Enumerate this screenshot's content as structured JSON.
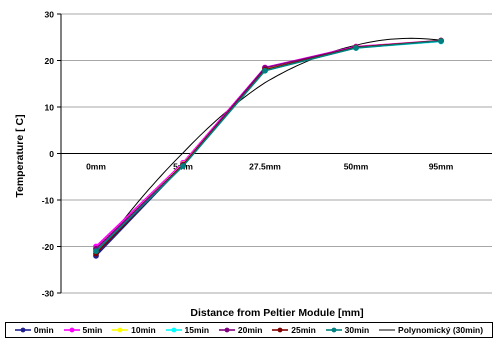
{
  "chart_data": {
    "type": "line",
    "xlabel": "Distance from Peltier Module [mm]",
    "ylabel": "Temperature [ C]",
    "categories": [
      "0mm",
      "5mm",
      "27.5mm",
      "50mm",
      "95mm"
    ],
    "ylim": [
      -30,
      30
    ],
    "yticks": [
      -30,
      -20,
      -10,
      0,
      10,
      20,
      30
    ],
    "grid": true,
    "legend_position": "bottom",
    "series": [
      {
        "name": "0min",
        "color": "#1f1f8f",
        "marker": "diamond",
        "values": [
          -22,
          -2.5,
          18,
          22.8,
          24.2
        ]
      },
      {
        "name": "5min",
        "color": "#ff00ff",
        "marker": "square",
        "values": [
          -20,
          -2,
          18.5,
          23,
          24.3
        ]
      },
      {
        "name": "10min",
        "color": "#ffff00",
        "marker": "triangle",
        "values": [
          -20.5,
          -2.3,
          18.2,
          22.9,
          24.2
        ]
      },
      {
        "name": "15min",
        "color": "#00ffff",
        "marker": "x",
        "values": [
          -21,
          -2.6,
          17.9,
          22.7,
          24.1
        ]
      },
      {
        "name": "20min",
        "color": "#800080",
        "marker": "star",
        "values": [
          -20.5,
          -2.4,
          18.4,
          22.9,
          24.2
        ]
      },
      {
        "name": "25min",
        "color": "#800000",
        "marker": "circle",
        "values": [
          -21.5,
          -2.5,
          18,
          22.8,
          24.3
        ]
      },
      {
        "name": "30min",
        "color": "#008080",
        "marker": "plus",
        "values": [
          -21,
          -2.7,
          17.8,
          22.7,
          24.2
        ]
      }
    ],
    "trendline": {
      "name": "Polynomický (30min)",
      "color": "#000000"
    }
  }
}
